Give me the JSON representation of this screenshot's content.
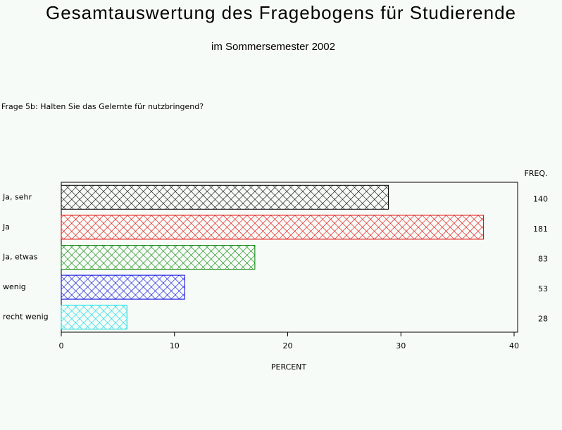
{
  "chart_data": {
    "type": "hbar",
    "title": "Gesamtauswertung des Fragebogens für Studierende",
    "subtitle": "im Sommersemester 2002",
    "question": "Frage 5b: Halten Sie das Gelernte für nutzbringend?",
    "x_label": "PERCENT",
    "categories": [
      "Ja, sehr",
      "Ja",
      "Ja, etwas",
      "wenig",
      "recht wenig"
    ],
    "values": [
      28.9,
      37.3,
      17.1,
      10.9,
      5.8
    ],
    "colors": [
      "#000000",
      "#e00000",
      "#008000",
      "#0000e0",
      "#00d8e0"
    ],
    "freq_label": "FREQ.",
    "freq": [
      140,
      181,
      83,
      53,
      28
    ],
    "xlim": [
      0,
      40
    ],
    "xticks": [
      0,
      10,
      20,
      30,
      40
    ],
    "pattern": "crosshatch"
  }
}
